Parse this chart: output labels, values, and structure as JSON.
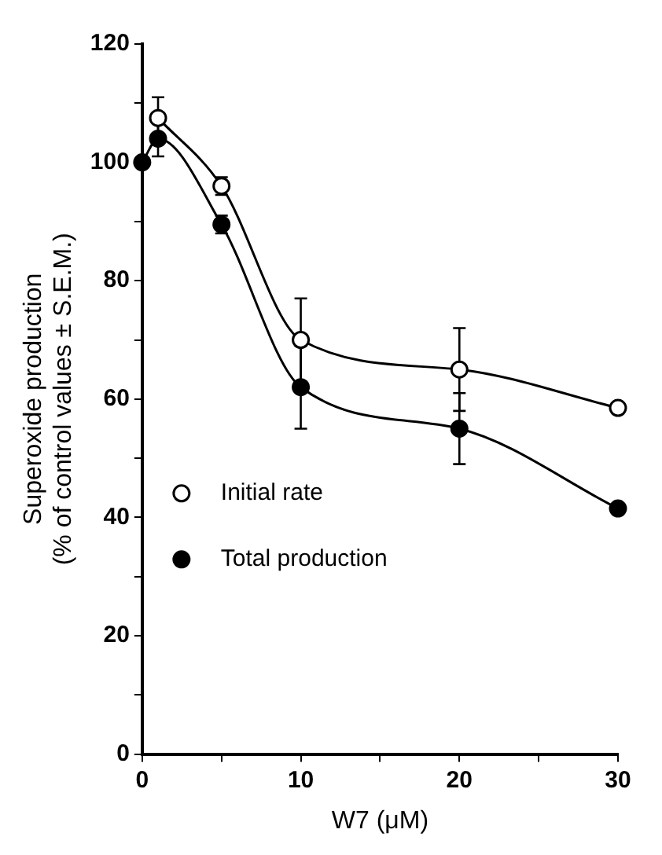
{
  "chart_data": {
    "type": "line",
    "xlabel": "W7 (μM)",
    "ylabel": "Superoxide production\n(% of control values ± S.E.M.)",
    "series": [
      {
        "name": "Initial rate",
        "color": "#000000",
        "marker": "circle",
        "x": [
          1,
          5,
          10,
          20,
          30
        ],
        "values": [
          107.5,
          96,
          70,
          65,
          58.5
        ],
        "errors": [
          3.5,
          1.5,
          7,
          7,
          null
        ]
      },
      {
        "name": "Total production",
        "color": "#000000",
        "marker": "circle",
        "x": [
          0,
          1,
          5,
          10,
          20,
          30
        ],
        "values": [
          100,
          104,
          89.5,
          62,
          55,
          41.5
        ],
        "errors": [
          null,
          3,
          1.5,
          7,
          6,
          null
        ]
      }
    ],
    "xlim": [
      0,
      30
    ],
    "xticks": [
      0,
      {
        "value": 5,
        "label": null
      },
      10,
      {
        "value": 15,
        "label": null
      },
      20,
      {
        "value": 25,
        "label": null
      },
      30
    ],
    "ylim": [
      0,
      120
    ],
    "yticks": [
      0,
      {
        "value": 10,
        "label": null
      },
      20,
      {
        "value": 30,
        "label": null
      },
      40,
      {
        "value": 50,
        "label": null
      },
      60,
      {
        "value": 70,
        "label": null
      },
      80,
      {
        "value": 90,
        "label": null
      },
      100,
      {
        "value": 110,
        "label": null
      },
      120
    ],
    "grid": false,
    "legend": "left",
    "line_style": "solid"
  }
}
